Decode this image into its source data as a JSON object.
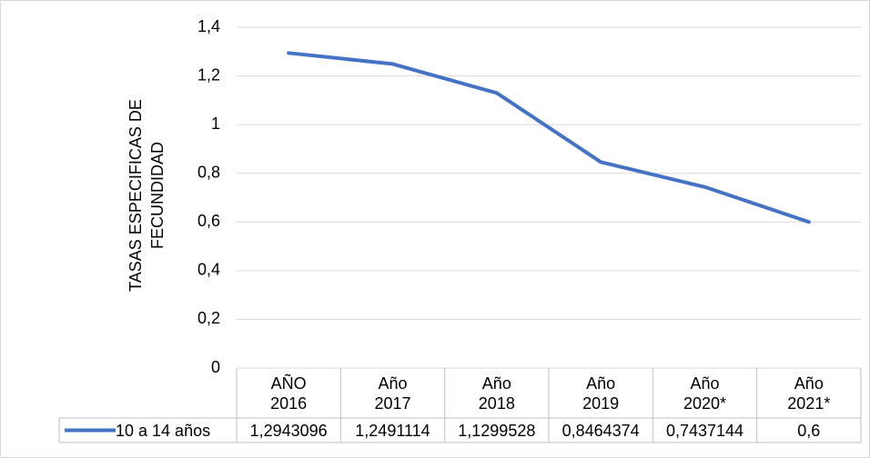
{
  "chart_data": {
    "type": "line",
    "y_label": [
      "TASAS ESPECIFICAS DE",
      "FECUNDIDAD"
    ],
    "categories": [
      "AÑO\n2016",
      "Año\n2017",
      "Año\n2018",
      "Año\n2019",
      "Año\n2020*",
      "Año\n2021*"
    ],
    "series": [
      {
        "name": "10 a 14 años",
        "color": "#4472c4",
        "values": [
          1.2943096,
          1.2491114,
          1.1299528,
          0.8464374,
          0.7437144,
          0.6
        ],
        "value_labels": [
          "1,2943096",
          "1,2491114",
          "1,1299528",
          "0,8464374",
          "0,7437144",
          "0,6"
        ]
      }
    ],
    "ylim": [
      0,
      1.4
    ],
    "yticks": [
      0,
      {
        "value": 0.2,
        "label": "0,2"
      },
      {
        "value": 0.4,
        "label": "0,4"
      },
      {
        "value": 0.6,
        "label": "0,6"
      },
      {
        "value": 0.8,
        "label": "0,8"
      },
      1,
      {
        "value": 1.2,
        "label": "1,2"
      },
      {
        "value": 1.4,
        "label": "1,4"
      }
    ],
    "grid": true,
    "legend": "table"
  }
}
